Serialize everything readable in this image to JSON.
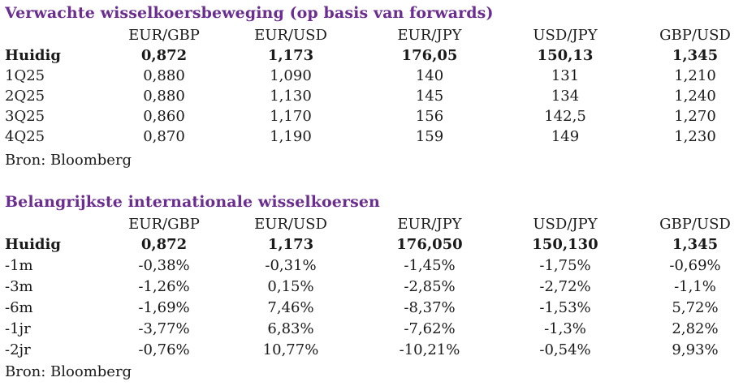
{
  "forwards": {
    "title": "Verwachte wisselkoersbeweging (op basis van forwards)",
    "headers": [
      "EUR/GBP",
      "EUR/USD",
      "EUR/JPY",
      "USD/JPY",
      "GBP/USD"
    ],
    "current": {
      "label": "Huidig",
      "values": [
        "0,872",
        "1,173",
        "176,05",
        "150,13",
        "1,345"
      ]
    },
    "rows": [
      {
        "label": "1Q25",
        "values": [
          "0,880",
          "1,090",
          "140",
          "131",
          "1,210"
        ]
      },
      {
        "label": "2Q25",
        "values": [
          "0,880",
          "1,130",
          "145",
          "134",
          "1,240"
        ]
      },
      {
        "label": "3Q25",
        "values": [
          "0,860",
          "1,170",
          "156",
          "142,5",
          "1,270"
        ]
      },
      {
        "label": "4Q25",
        "values": [
          "0,870",
          "1,190",
          "159",
          "149",
          "1,230"
        ]
      }
    ],
    "source": "Bron: Bloomberg"
  },
  "rates": {
    "title": "Belangrijkste internationale wisselkoersen",
    "headers": [
      "EUR/GBP",
      "EUR/USD",
      "EUR/JPY",
      "USD/JPY",
      "GBP/USD"
    ],
    "current": {
      "label": "Huidig",
      "values": [
        "0,872",
        "1,173",
        "176,050",
        "150,130",
        "1,345"
      ]
    },
    "rows": [
      {
        "label": "-1m",
        "values": [
          "-0,38%",
          "-0,31%",
          "-1,45%",
          "-1,75%",
          "-0,69%"
        ]
      },
      {
        "label": "-3m",
        "values": [
          "-1,26%",
          "0,15%",
          "-2,85%",
          "-2,72%",
          "-1,1%"
        ]
      },
      {
        "label": "-6m",
        "values": [
          "-1,69%",
          "7,46%",
          "-8,37%",
          "-1,53%",
          "5,72%"
        ]
      },
      {
        "label": "-1jr",
        "values": [
          "-3,77%",
          "6,83%",
          "-7,62%",
          "-1,3%",
          "2,82%"
        ]
      },
      {
        "label": "-2jr",
        "values": [
          "-0,76%",
          "10,77%",
          "-10,21%",
          "-0,54%",
          "9,93%"
        ]
      }
    ],
    "source": "Bron: Bloomberg"
  }
}
